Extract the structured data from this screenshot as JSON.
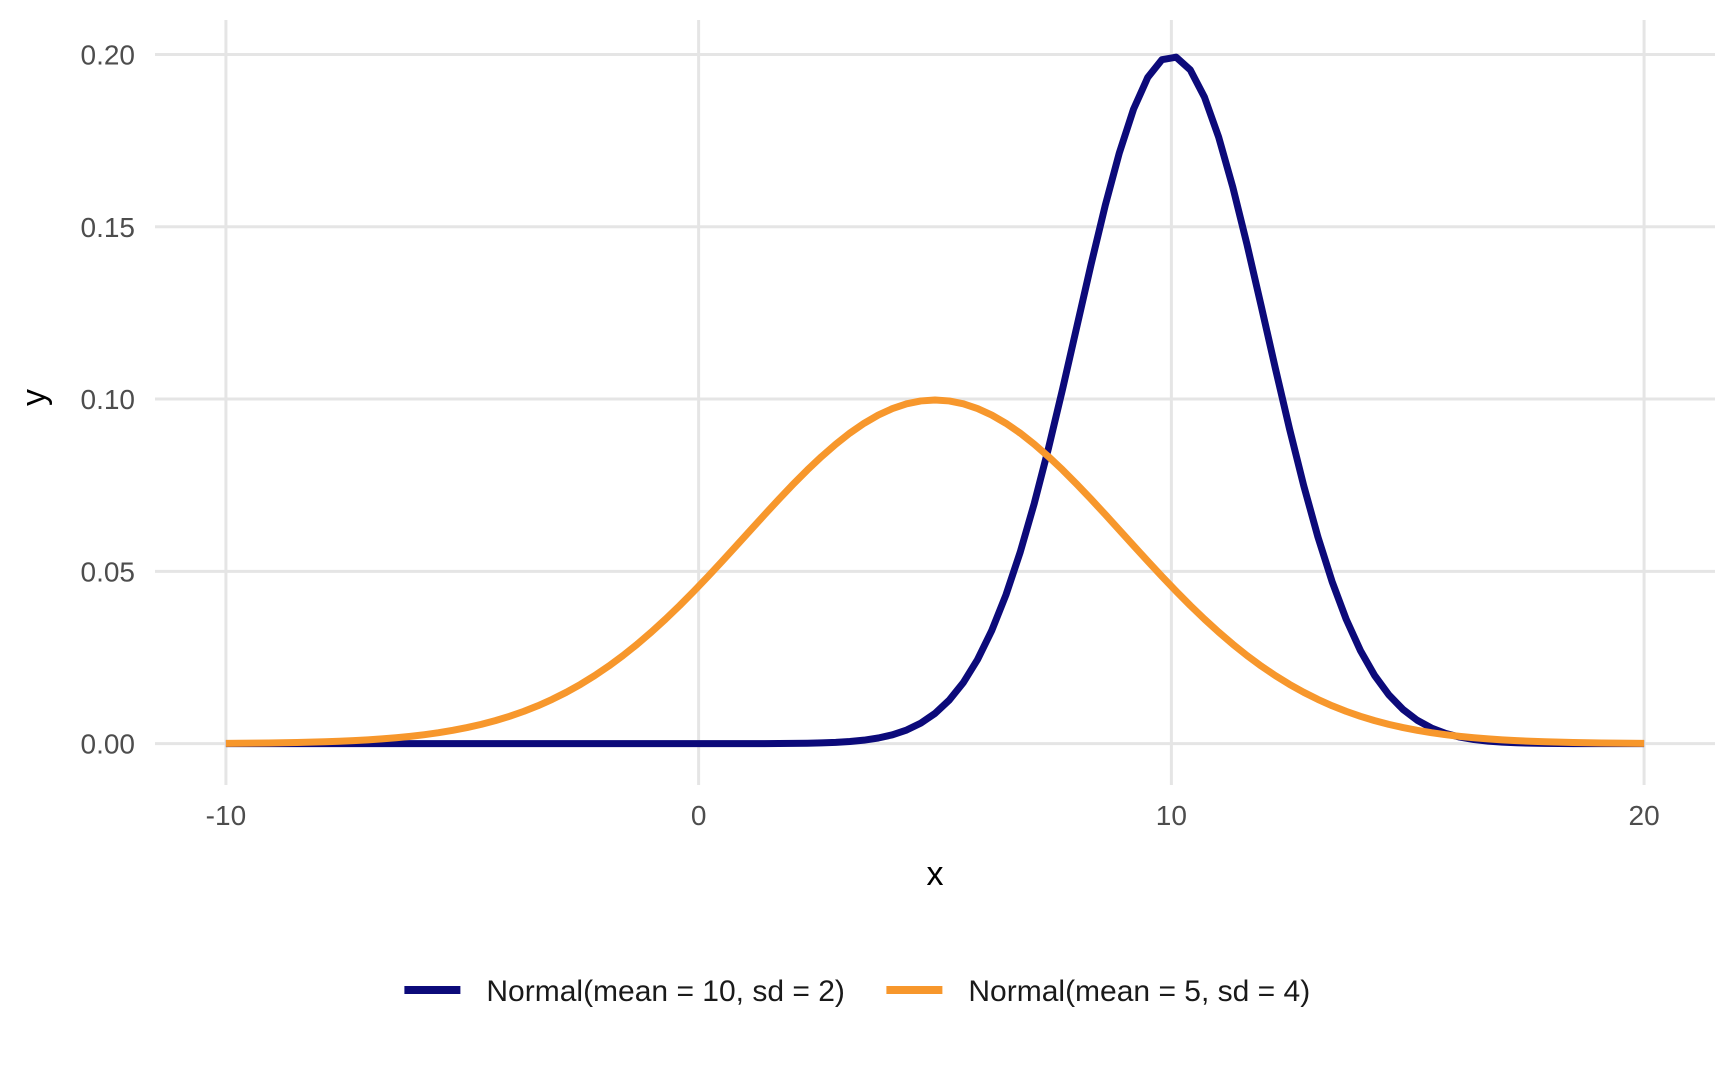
{
  "chart_data": {
    "type": "line",
    "xlabel": "x",
    "ylabel": "y",
    "xlim": [
      -11.5,
      21.5
    ],
    "ylim": [
      -0.012,
      0.21
    ],
    "x_ticks": [
      -10,
      0,
      10,
      20
    ],
    "x_tick_labels": [
      "-10",
      "0",
      "10",
      "20"
    ],
    "y_ticks": [
      0.0,
      0.05,
      0.1,
      0.15,
      0.2
    ],
    "y_tick_labels": [
      "0.00",
      "0.05",
      "0.10",
      "0.15",
      "0.20"
    ],
    "grid": true,
    "legend_position": "bottom",
    "series": [
      {
        "name": "Normal(mean = 10, sd = 2)",
        "color": "#0c0a7a",
        "x": [
          -10,
          -9,
          -8,
          -7,
          -6,
          -5,
          -4,
          -3,
          -2,
          -1,
          0,
          1,
          2,
          3,
          4,
          5,
          6,
          7,
          8,
          9,
          10,
          11,
          12,
          13,
          14,
          15,
          16,
          17,
          18,
          19,
          20
        ],
        "y": [
          0.0,
          0.0,
          0.0,
          0.0,
          0.0,
          0.0,
          0.0,
          0.0,
          0.0,
          0.0,
          0.0,
          0.0001,
          0.0007,
          0.0044,
          0.0088,
          0.0088,
          0.027,
          0.0648,
          0.121,
          0.176,
          0.1995,
          0.176,
          0.121,
          0.0648,
          0.027,
          0.0088,
          0.0022,
          0.0004,
          0.0001,
          0.0,
          0.0
        ]
      },
      {
        "name": "Normal(mean = 5, sd = 4)",
        "color": "#f7972c",
        "x": [
          -10,
          -9,
          -8,
          -7,
          -6,
          -5,
          -4,
          -3,
          -2,
          -1,
          0,
          1,
          2,
          3,
          4,
          5,
          6,
          7,
          8,
          9,
          10,
          11,
          12,
          13,
          14,
          15,
          16,
          17,
          18,
          19,
          20
        ],
        "y": [
          0.0,
          0.0001,
          0.0005,
          0.0011,
          0.0023,
          0.0044,
          0.0079,
          0.0135,
          0.0216,
          0.0324,
          0.0457,
          0.0605,
          0.0753,
          0.088,
          0.0967,
          0.0997,
          0.0967,
          0.088,
          0.0753,
          0.0605,
          0.0457,
          0.0324,
          0.0216,
          0.0135,
          0.0079,
          0.0044,
          0.0023,
          0.0011,
          0.0005,
          0.0002,
          0.0001
        ]
      }
    ]
  }
}
